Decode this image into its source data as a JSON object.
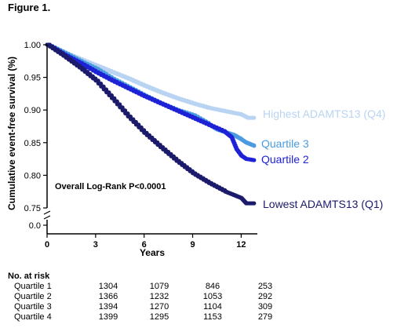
{
  "figure_label": "Figure 1.",
  "colors": {
    "q1": "#1b1a6b",
    "q2": "#1e22d6",
    "q3": "#4a9be0",
    "q4": "#b9d3f2"
  },
  "chart_data": {
    "type": "line",
    "ylabel": "Cumulative event-free survival (%)",
    "xlabel": "Years",
    "xlim": [
      0,
      13
    ],
    "ylim": [
      0.75,
      1.0
    ],
    "broken_y_axis": true,
    "x_ticks": [
      "0",
      "3",
      "6",
      "9",
      "12"
    ],
    "x_tick_values": [
      0,
      3,
      6,
      9,
      12
    ],
    "y_ticks": [
      "0.75",
      "0.80",
      "0.85",
      "0.90",
      "0.95",
      "1.00"
    ],
    "y_tick_values": [
      0.75,
      0.8,
      0.85,
      0.9,
      0.95,
      1.0
    ],
    "y_low_tick": "0.0",
    "annotation": "Overall Log-Rank P<0.0001",
    "series": [
      {
        "name": "Highest ADAMTS13 (Q4)",
        "color_key": "q4",
        "x": [
          0,
          1,
          2,
          3,
          4,
          5,
          6,
          7,
          8,
          9,
          10,
          11,
          12,
          12.4,
          12.8
        ],
        "y": [
          1.0,
          0.988,
          0.978,
          0.968,
          0.958,
          0.948,
          0.937,
          0.927,
          0.918,
          0.91,
          0.903,
          0.898,
          0.893,
          0.888,
          0.888
        ]
      },
      {
        "name": "Quartile 3",
        "color_key": "q3",
        "x": [
          0,
          1,
          2,
          3,
          4,
          5,
          6,
          7,
          8,
          9,
          10,
          10.5,
          11,
          11.5,
          12,
          12.3,
          12.8
        ],
        "y": [
          1.0,
          0.988,
          0.975,
          0.963,
          0.948,
          0.935,
          0.922,
          0.91,
          0.9,
          0.892,
          0.878,
          0.87,
          0.866,
          0.862,
          0.855,
          0.85,
          0.845
        ]
      },
      {
        "name": "Quartile 2",
        "color_key": "q2",
        "x": [
          0,
          1,
          2,
          3,
          4,
          5,
          6,
          7,
          8,
          9,
          10,
          11,
          11.4,
          11.7,
          12,
          12.3,
          12.8
        ],
        "y": [
          1.0,
          0.985,
          0.972,
          0.958,
          0.945,
          0.933,
          0.921,
          0.91,
          0.899,
          0.888,
          0.877,
          0.866,
          0.858,
          0.84,
          0.83,
          0.825,
          0.823
        ]
      },
      {
        "name": "Lowest ADAMTS13 (Q1)",
        "color_key": "q1",
        "x": [
          0,
          1,
          2,
          3,
          4,
          5,
          6,
          7,
          8,
          9,
          10,
          11,
          11.5,
          12,
          12.3,
          12.8
        ],
        "y": [
          1.0,
          0.983,
          0.965,
          0.945,
          0.918,
          0.89,
          0.865,
          0.843,
          0.822,
          0.803,
          0.788,
          0.775,
          0.77,
          0.765,
          0.757,
          0.757
        ]
      }
    ]
  },
  "risk_table": {
    "title": "No. at risk",
    "rows": [
      {
        "label": "Quartile 1",
        "values": [
          "1304",
          "1079",
          "846",
          "253"
        ]
      },
      {
        "label": "Quartile 2",
        "values": [
          "1366",
          "1232",
          "1053",
          "292"
        ]
      },
      {
        "label": "Quartile 3",
        "values": [
          "1394",
          "1270",
          "1104",
          "309"
        ]
      },
      {
        "label": "Quartile 4",
        "values": [
          "1399",
          "1295",
          "1153",
          "279"
        ]
      }
    ]
  }
}
